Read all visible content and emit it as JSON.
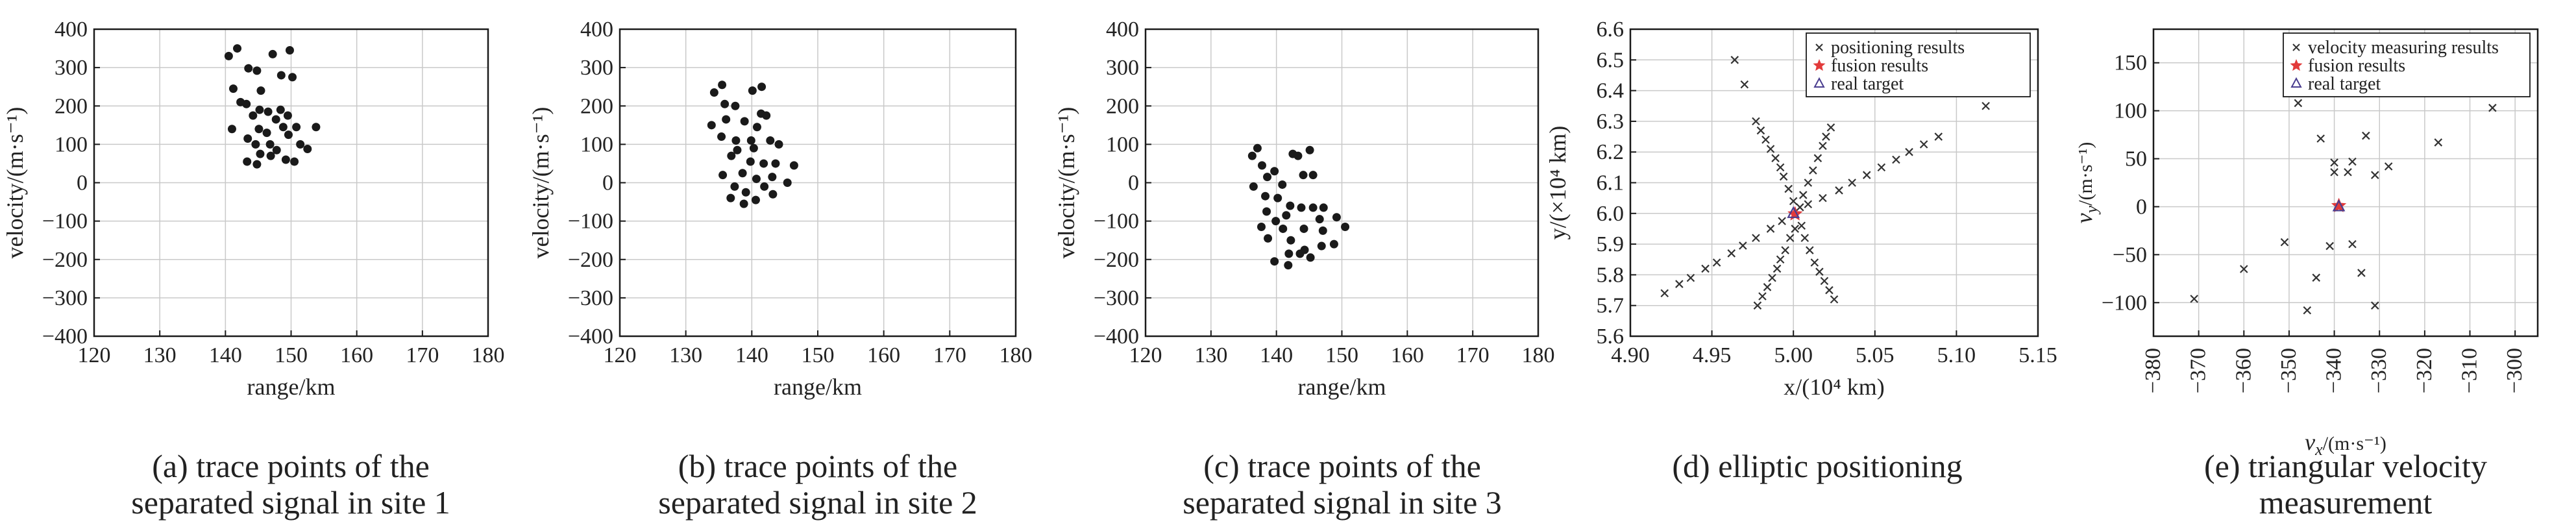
{
  "chart_data": [
    {
      "type": "scatter",
      "xlabel": "range/km",
      "ylabel": "velocity/(m·s⁻¹)",
      "xlim": [
        120,
        180
      ],
      "ylim": [
        -400,
        400
      ],
      "xticks": [
        "120",
        "130",
        "140",
        "150",
        "160",
        "170",
        "180"
      ],
      "yticks": [
        "400",
        "300",
        "200",
        "100",
        "0",
        "−100",
        "−200",
        "−300",
        "−400"
      ],
      "grid": true,
      "caption": [
        "(a) trace points of the",
        "separated signal in site 1"
      ],
      "series": [
        {
          "marker": "dot",
          "points": [
            [
              140.5,
              330
            ],
            [
              141.8,
              350
            ],
            [
              143.5,
              298
            ],
            [
              144.8,
              292
            ],
            [
              147.2,
              335
            ],
            [
              149.8,
              345
            ],
            [
              148.5,
              280
            ],
            [
              150.2,
              275
            ],
            [
              141.2,
              245
            ],
            [
              145.4,
              240
            ],
            [
              142.3,
              210
            ],
            [
              143.2,
              205
            ],
            [
              145.2,
              190
            ],
            [
              146.5,
              185
            ],
            [
              148.4,
              190
            ],
            [
              149.5,
              175
            ],
            [
              144.2,
              175
            ],
            [
              147.7,
              165
            ],
            [
              141.0,
              140
            ],
            [
              145.1,
              140
            ],
            [
              148.8,
              145
            ],
            [
              150.8,
              145
            ],
            [
              153.8,
              145
            ],
            [
              143.4,
              115
            ],
            [
              146.3,
              130
            ],
            [
              149.6,
              125
            ],
            [
              144.6,
              100
            ],
            [
              146.8,
              100
            ],
            [
              151.4,
              100
            ],
            [
              147.8,
              85
            ],
            [
              152.5,
              88
            ],
            [
              145.3,
              75
            ],
            [
              146.9,
              70
            ],
            [
              149.2,
              60
            ],
            [
              143.3,
              55
            ],
            [
              144.8,
              48
            ],
            [
              150.5,
              55
            ]
          ]
        }
      ]
    },
    {
      "type": "scatter",
      "xlabel": "range/km",
      "ylabel": "velocity/(m·s⁻¹)",
      "xlim": [
        120,
        180
      ],
      "ylim": [
        -400,
        400
      ],
      "xticks": [
        "120",
        "130",
        "140",
        "150",
        "160",
        "170",
        "180"
      ],
      "yticks": [
        "400",
        "300",
        "200",
        "100",
        "0",
        "−100",
        "−200",
        "−300",
        "−400"
      ],
      "grid": true,
      "caption": [
        "(b) trace points of the",
        "separated signal in site 2"
      ],
      "series": [
        {
          "marker": "dot",
          "points": [
            [
              134.3,
              235
            ],
            [
              135.5,
              255
            ],
            [
              140.1,
              240
            ],
            [
              141.5,
              250
            ],
            [
              135.9,
              205
            ],
            [
              137.5,
              200
            ],
            [
              141.4,
              180
            ],
            [
              142.2,
              175
            ],
            [
              133.9,
              150
            ],
            [
              136.1,
              165
            ],
            [
              138.9,
              160
            ],
            [
              140.8,
              145
            ],
            [
              135.4,
              120
            ],
            [
              137.6,
              110
            ],
            [
              139.9,
              110
            ],
            [
              142.8,
              110
            ],
            [
              144.1,
              100
            ],
            [
              137.8,
              85
            ],
            [
              140.3,
              90
            ],
            [
              136.9,
              70
            ],
            [
              139.8,
              55
            ],
            [
              141.8,
              50
            ],
            [
              143.6,
              50
            ],
            [
              146.4,
              45
            ],
            [
              135.6,
              20
            ],
            [
              138.6,
              25
            ],
            [
              140.7,
              10
            ],
            [
              143.1,
              15
            ],
            [
              137.4,
              -10
            ],
            [
              141.9,
              -10
            ],
            [
              145.4,
              0
            ],
            [
              139.1,
              -25
            ],
            [
              143.2,
              -30
            ],
            [
              136.8,
              -40
            ],
            [
              140.6,
              -45
            ],
            [
              138.8,
              -55
            ]
          ]
        }
      ]
    },
    {
      "type": "scatter",
      "xlabel": "range/km",
      "ylabel": "velocity/(m·s⁻¹)",
      "xlim": [
        120,
        180
      ],
      "ylim": [
        -400,
        400
      ],
      "xticks": [
        "120",
        "130",
        "140",
        "150",
        "160",
        "170",
        "180"
      ],
      "yticks": [
        "400",
        "300",
        "200",
        "100",
        "0",
        "−100",
        "−200",
        "−300",
        "−400"
      ],
      "grid": true,
      "caption": [
        "(c) trace points of the",
        "separated signal in site 3"
      ],
      "series": [
        {
          "marker": "dot",
          "points": [
            [
              137.1,
              90
            ],
            [
              136.3,
              70
            ],
            [
              142.5,
              75
            ],
            [
              143.3,
              70
            ],
            [
              145.1,
              85
            ],
            [
              137.8,
              45
            ],
            [
              139.7,
              30
            ],
            [
              144.1,
              20
            ],
            [
              145.6,
              20
            ],
            [
              138.6,
              15
            ],
            [
              140.9,
              -5
            ],
            [
              136.5,
              -10
            ],
            [
              138.3,
              -35
            ],
            [
              140.2,
              -40
            ],
            [
              142.1,
              -60
            ],
            [
              143.8,
              -65
            ],
            [
              145.6,
              -65
            ],
            [
              147.2,
              -65
            ],
            [
              138.5,
              -75
            ],
            [
              141.5,
              -85
            ],
            [
              139.9,
              -100
            ],
            [
              146.6,
              -95
            ],
            [
              149.2,
              -90
            ],
            [
              150.5,
              -115
            ],
            [
              137.7,
              -115
            ],
            [
              141.0,
              -120
            ],
            [
              144.2,
              -120
            ],
            [
              147.1,
              -125
            ],
            [
              138.7,
              -145
            ],
            [
              142.2,
              -150
            ],
            [
              144.3,
              -175
            ],
            [
              146.9,
              -165
            ],
            [
              148.8,
              -160
            ],
            [
              141.9,
              -185
            ],
            [
              143.6,
              -185
            ],
            [
              145.2,
              -195
            ],
            [
              139.7,
              -205
            ],
            [
              141.8,
              -215
            ]
          ]
        }
      ]
    },
    {
      "type": "scatter",
      "xlabel": "x/(10⁴ km)",
      "ylabel": "y/(×10⁴ km)",
      "xlim": [
        4.9,
        5.15
      ],
      "ylim": [
        5.6,
        6.6
      ],
      "xticks": [
        "4.90",
        "4.95",
        "5.00",
        "5.05",
        "5.10",
        "5.15"
      ],
      "yticks": [
        "6.6",
        "6.5",
        "6.4",
        "6.3",
        "6.2",
        "6.1",
        "6.0",
        "5.9",
        "5.8",
        "5.7",
        "5.6"
      ],
      "grid": true,
      "legend_position": "top-right",
      "legend": [
        "positioning results",
        "fusion results",
        "real target"
      ],
      "caption": [
        "(d) elliptic positioning"
      ],
      "series": [
        {
          "name": "positioning results",
          "marker": "x",
          "color": "#333333",
          "points": [
            [
              4.964,
              6.5
            ],
            [
              4.97,
              6.42
            ],
            [
              5.118,
              6.35
            ],
            [
              4.921,
              5.74
            ],
            [
              4.93,
              5.77
            ],
            [
              4.937,
              5.79
            ],
            [
              4.946,
              5.82
            ],
            [
              4.953,
              5.84
            ],
            [
              4.962,
              5.87
            ],
            [
              4.969,
              5.895
            ],
            [
              4.977,
              5.92
            ],
            [
              4.986,
              5.95
            ],
            [
              4.993,
              5.975
            ],
            [
              5.009,
              6.03
            ],
            [
              5.018,
              6.05
            ],
            [
              5.028,
              6.075
            ],
            [
              5.036,
              6.1
            ],
            [
              5.045,
              6.125
            ],
            [
              5.054,
              6.15
            ],
            [
              5.063,
              6.175
            ],
            [
              5.071,
              6.2
            ],
            [
              5.08,
              6.225
            ],
            [
              5.089,
              6.25
            ],
            [
              4.978,
              5.7
            ],
            [
              4.981,
              5.73
            ],
            [
              4.984,
              5.76
            ],
            [
              4.987,
              5.79
            ],
            [
              4.99,
              5.82
            ],
            [
              4.992,
              5.85
            ],
            [
              4.995,
              5.88
            ],
            [
              4.998,
              5.92
            ],
            [
              5.001,
              5.95
            ],
            [
              5.004,
              6.02
            ],
            [
              5.006,
              6.06
            ],
            [
              5.009,
              6.1
            ],
            [
              5.012,
              6.14
            ],
            [
              5.015,
              6.18
            ],
            [
              5.018,
              6.22
            ],
            [
              5.02,
              6.25
            ],
            [
              5.023,
              6.28
            ],
            [
              4.977,
              6.3
            ],
            [
              4.98,
              6.27
            ],
            [
              4.983,
              6.24
            ],
            [
              4.986,
              6.21
            ],
            [
              4.989,
              6.18
            ],
            [
              4.992,
              6.15
            ],
            [
              4.994,
              6.12
            ],
            [
              4.997,
              6.08
            ],
            [
              5.0,
              6.04
            ],
            [
              5.005,
              5.96
            ],
            [
              5.007,
              5.92
            ],
            [
              5.01,
              5.88
            ],
            [
              5.013,
              5.84
            ],
            [
              5.016,
              5.81
            ],
            [
              5.019,
              5.78
            ],
            [
              5.022,
              5.75
            ],
            [
              5.025,
              5.72
            ]
          ]
        },
        {
          "name": "fusion results",
          "marker": "star",
          "color": "#e23a3a",
          "points": [
            [
              5.001,
              5.998
            ]
          ]
        },
        {
          "name": "real target",
          "marker": "triangle",
          "color": "#4a3d8f",
          "points": [
            [
              5.0,
              6.0
            ]
          ]
        }
      ]
    },
    {
      "type": "scatter",
      "xlabel": "v_x/(m·s⁻¹)",
      "ylabel": "v_y/(m·s⁻¹)",
      "xlim": [
        -380,
        -295
      ],
      "ylim": [
        -135,
        185
      ],
      "xticks": [
        "−380",
        "−370",
        "−360",
        "−350",
        "−340",
        "−330",
        "−320",
        "−310",
        "−300"
      ],
      "yticks": [
        "150",
        "100",
        "50",
        "0",
        "−50",
        "−100"
      ],
      "grid": true,
      "legend_position": "top-right",
      "legend": [
        "velocity measuring results",
        "fusion results",
        "real target"
      ],
      "caption": [
        "(e) triangular velocity",
        "measurement"
      ],
      "series": [
        {
          "name": "velocity measuring results",
          "marker": "x",
          "color": "#333333",
          "points": [
            [
              -348,
              108
            ],
            [
              -305,
              103
            ],
            [
              -317,
              67
            ],
            [
              -343,
              71
            ],
            [
              -333,
              74
            ],
            [
              -328,
              42
            ],
            [
              -340,
              46
            ],
            [
              -336,
              47
            ],
            [
              -340,
              36
            ],
            [
              -331,
              33
            ],
            [
              -337,
              36
            ],
            [
              -351,
              -37
            ],
            [
              -341,
              -41
            ],
            [
              -336,
              -39
            ],
            [
              -344,
              -74
            ],
            [
              -334,
              -69
            ],
            [
              -360,
              -65
            ],
            [
              -371,
              -96
            ],
            [
              -346,
              -108
            ],
            [
              -331,
              -103
            ]
          ]
        },
        {
          "name": "fusion results",
          "marker": "star",
          "color": "#e23a3a",
          "points": [
            [
              -339,
              1
            ]
          ]
        },
        {
          "name": "real target",
          "marker": "triangle",
          "color": "#4a3d8f",
          "points": [
            [
              -339,
              0
            ]
          ]
        }
      ]
    }
  ]
}
